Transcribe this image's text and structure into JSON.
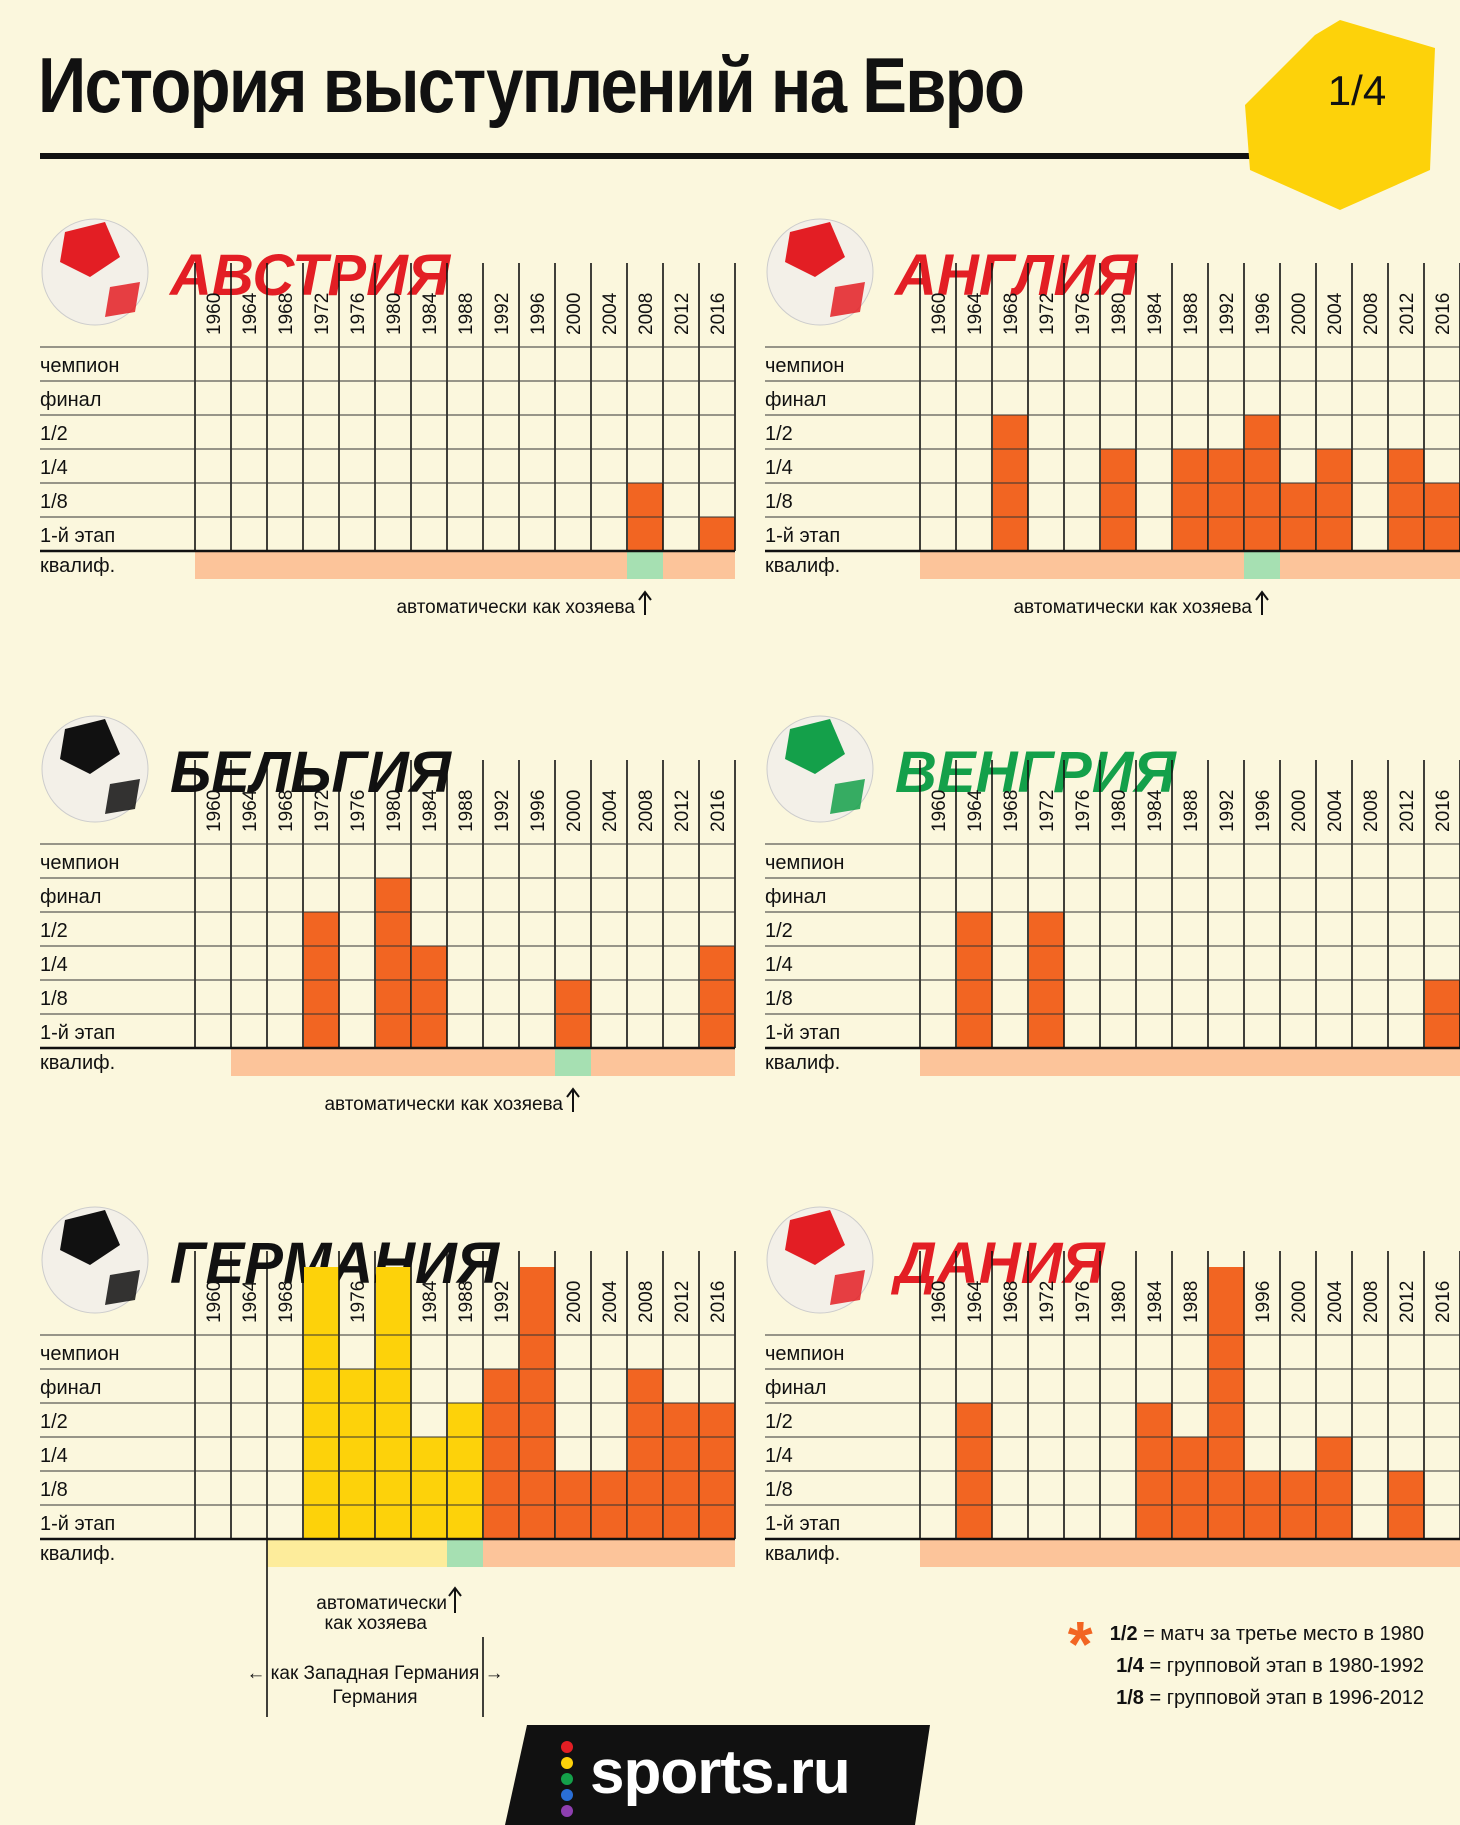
{
  "title": "История выступлений на Евро",
  "page_label": "1/4",
  "footer": {
    "brand": "sports.ru"
  },
  "legend": [
    {
      "key": "1/2",
      "text": " = матч за третье место в 1980"
    },
    {
      "key": "1/4",
      "text": " = групповой этап в 1980-1992"
    },
    {
      "key": "1/8",
      "text": " = групповой этап в 1996-2012"
    }
  ],
  "legend_marker": "*",
  "colors": {
    "background": "#fbf7dd",
    "participation": "#f26522",
    "as_west_germany": "#fdd20a",
    "qualifying": "#fcc49a",
    "qualifying_west_germany": "#fdec9b",
    "auto_host": "#a6e0b2",
    "badge": "#fdd20a"
  },
  "chart_data": [
    {
      "type": "table",
      "team": "АВСТРИЯ",
      "team_color": "#e31e24",
      "years": [
        "1960",
        "1964",
        "1968",
        "1972",
        "1976",
        "1980",
        "1984",
        "1988",
        "1992",
        "1996",
        "2000",
        "2004",
        "2008",
        "2012",
        "2016"
      ],
      "stages": [
        "чемпион",
        "финал",
        "1/2",
        "1/4",
        "1/8",
        "1-й этап",
        "квалиф."
      ],
      "best_stage": [
        null,
        null,
        null,
        null,
        null,
        null,
        null,
        null,
        null,
        null,
        null,
        null,
        "1/8",
        null,
        "1-й этап"
      ],
      "qualifying": [
        "q",
        "q",
        "q",
        "q",
        "q",
        "q",
        "q",
        "q",
        "q",
        "q",
        "q",
        "q",
        "host",
        "q",
        "q"
      ],
      "note": "автоматически как хозяева",
      "note_year": "2008"
    },
    {
      "type": "table",
      "team": "АНГЛИЯ",
      "team_color": "#e31e24",
      "years": [
        "1960",
        "1964",
        "1968",
        "1972",
        "1976",
        "1980",
        "1984",
        "1988",
        "1992",
        "1996",
        "2000",
        "2004",
        "2008",
        "2012",
        "2016"
      ],
      "stages": [
        "чемпион",
        "финал",
        "1/2",
        "1/4",
        "1/8",
        "1-й этап",
        "квалиф."
      ],
      "best_stage": [
        null,
        null,
        "1/2",
        null,
        null,
        "1/4",
        null,
        "1/4",
        "1/4",
        "1/2",
        "1/8",
        "1/4",
        null,
        "1/4",
        "1/8"
      ],
      "qualifying": [
        "q",
        "q",
        "q",
        "q",
        "q",
        "q",
        "q",
        "q",
        "q",
        "host",
        "q",
        "q",
        "q",
        "q",
        "q"
      ],
      "note": "автоматически как хозяева",
      "note_year": "1996"
    },
    {
      "type": "table",
      "team": "БЕЛЬГИЯ",
      "team_color": "#111111",
      "years": [
        "1960",
        "1964",
        "1968",
        "1972",
        "1976",
        "1980",
        "1984",
        "1988",
        "1992",
        "1996",
        "2000",
        "2004",
        "2008",
        "2012",
        "2016"
      ],
      "stages": [
        "чемпион",
        "финал",
        "1/2",
        "1/4",
        "1/8",
        "1-й этап",
        "квалиф."
      ],
      "best_stage": [
        null,
        null,
        null,
        "1/2",
        null,
        "финал",
        "1/4",
        null,
        null,
        null,
        "1/8",
        null,
        null,
        null,
        "1/4"
      ],
      "qualifying": [
        null,
        "q",
        "q",
        "q",
        "q",
        "q",
        "q",
        "q",
        "q",
        "q",
        "host",
        "q",
        "q",
        "q",
        "q"
      ],
      "note": "автоматически как хозяева",
      "note_year": "2000"
    },
    {
      "type": "table",
      "team": "ВЕНГРИЯ",
      "team_color": "#14a04a",
      "years": [
        "1960",
        "1964",
        "1968",
        "1972",
        "1976",
        "1980",
        "1984",
        "1988",
        "1992",
        "1996",
        "2000",
        "2004",
        "2008",
        "2012",
        "2016"
      ],
      "stages": [
        "чемпион",
        "финал",
        "1/2",
        "1/4",
        "1/8",
        "1-й этап",
        "квалиф."
      ],
      "best_stage": [
        null,
        "1/2",
        null,
        "1/2",
        null,
        null,
        null,
        null,
        null,
        null,
        null,
        null,
        null,
        null,
        "1/8"
      ],
      "qualifying": [
        "q",
        "q",
        "q",
        "q",
        "q",
        "q",
        "q",
        "q",
        "q",
        "q",
        "q",
        "q",
        "q",
        "q",
        "q"
      ],
      "note": null,
      "note_year": null
    },
    {
      "type": "table",
      "team": "ГЕРМАНИЯ",
      "team_color": "#111111",
      "years": [
        "1960",
        "1964",
        "1968",
        "1972",
        "1976",
        "1980",
        "1984",
        "1988",
        "1992",
        "1996",
        "2000",
        "2004",
        "2008",
        "2012",
        "2016"
      ],
      "stages": [
        "чемпион",
        "финал",
        "1/2",
        "1/4",
        "1/8",
        "1-й этап",
        "квалиф."
      ],
      "best_stage": [
        null,
        null,
        null,
        "чемпион",
        "финал",
        "чемпион",
        "1/4",
        "1/2",
        "финал",
        "чемпион",
        "1/8",
        "1/8",
        "финал",
        "1/2",
        "1/2"
      ],
      "qualifying": [
        null,
        null,
        "wg",
        "wg",
        "wg",
        "wg",
        "wg",
        "host",
        "q",
        "q",
        "q",
        "q",
        "q",
        "q",
        "q"
      ],
      "west_germany_years": [
        "1968",
        "1972",
        "1976",
        "1980",
        "1984",
        "1988"
      ],
      "note": "автоматически как хозяева",
      "note_year": "1988",
      "note_wg": "← как Западная Германия →"
    },
    {
      "type": "table",
      "team": "ДАНИЯ",
      "team_color": "#e31e24",
      "years": [
        "1960",
        "1964",
        "1968",
        "1972",
        "1976",
        "1980",
        "1984",
        "1988",
        "1992",
        "1996",
        "2000",
        "2004",
        "2008",
        "2012",
        "2016"
      ],
      "stages": [
        "чемпион",
        "финал",
        "1/2",
        "1/4",
        "1/8",
        "1-й этап",
        "квалиф."
      ],
      "best_stage": [
        null,
        "1/2",
        null,
        null,
        null,
        null,
        "1/2",
        "1/4",
        "чемпион",
        "1/8",
        "1/8",
        "1/4",
        null,
        "1/8",
        null
      ],
      "qualifying": [
        "q",
        "q",
        "q",
        "q",
        "q",
        "q",
        "q",
        "q",
        "q",
        "q",
        "q",
        "q",
        "q",
        "q",
        "q"
      ],
      "note": null,
      "note_year": null
    }
  ]
}
